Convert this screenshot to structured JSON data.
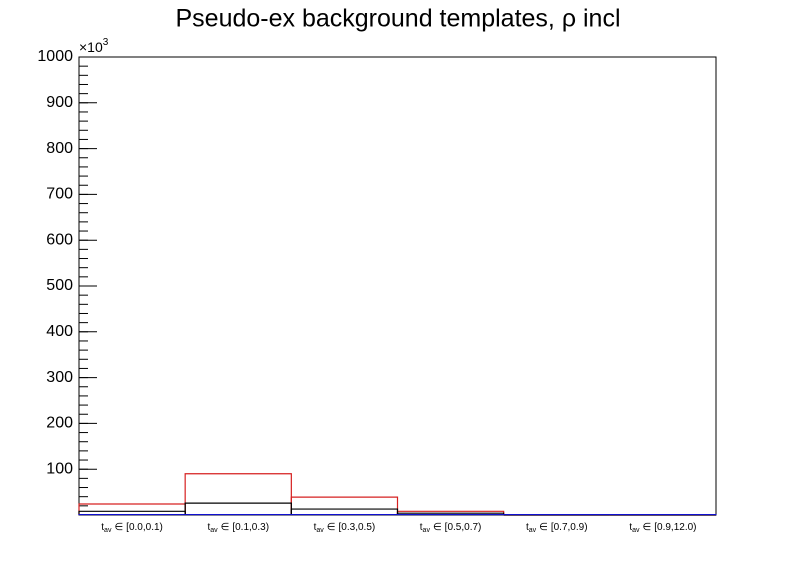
{
  "chart_data": {
    "type": "histogram-steps",
    "title": "Pseudo-ex background templates,   ρ incl",
    "category_variable": "t",
    "category_subscript": "av",
    "category_relation": "∈",
    "categories": [
      "[0.0,0.1)",
      "[0.1,0.3)",
      "[0.3,0.5)",
      "[0.5,0.7)",
      "[0.7,0.9)",
      "[0.9,12.0)"
    ],
    "y_multiplier_base": "×10",
    "y_multiplier_exponent": "3",
    "series": [
      {
        "color": "#d62020",
        "values": [
          24,
          90,
          39,
          8,
          0,
          0
        ]
      },
      {
        "color": "#000000",
        "values": [
          8,
          26,
          13,
          4,
          0,
          0
        ]
      },
      {
        "color": "#1010d0",
        "values": [
          1,
          1,
          1,
          1,
          1,
          1
        ]
      }
    ],
    "ylim": [
      0,
      1000
    ],
    "yticks": [
      100,
      200,
      300,
      400,
      500,
      600,
      700,
      800,
      900,
      1000
    ]
  }
}
